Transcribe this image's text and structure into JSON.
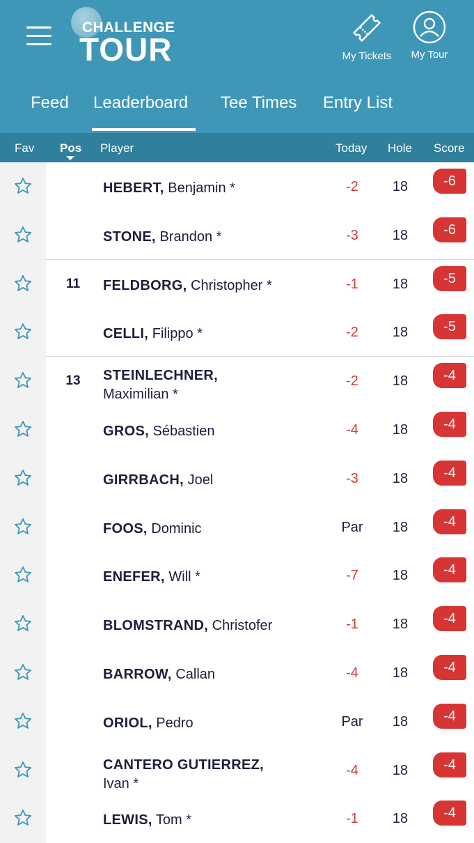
{
  "header": {
    "logo_line1": "CHALLENGE",
    "logo_line2": "TOUR",
    "tickets_label": "My Tickets",
    "mytour_label": "My Tour",
    "accent_color": "#3f97b8"
  },
  "tabs": [
    {
      "label": "Feed"
    },
    {
      "label": "Leaderboard",
      "active": true
    },
    {
      "label": "Tee Times"
    },
    {
      "label": "Entry List"
    }
  ],
  "columns": {
    "fav": "Fav",
    "pos": "Pos",
    "player": "Player",
    "today": "Today",
    "hole": "Hole",
    "score": "Score"
  },
  "rows": [
    {
      "pos": "",
      "last": "HEBERT,",
      "first": "Benjamin *",
      "today": "-2",
      "hole": "18",
      "score": "-6"
    },
    {
      "pos": "",
      "last": "STONE,",
      "first": "Brandon *",
      "today": "-3",
      "hole": "18",
      "score": "-6"
    },
    {
      "pos": "11",
      "last": "FELDBORG,",
      "first": "Christopher *",
      "today": "-1",
      "hole": "18",
      "score": "-5"
    },
    {
      "pos": "",
      "last": "CELLI,",
      "first": "Filippo *",
      "today": "-2",
      "hole": "18",
      "score": "-5"
    },
    {
      "pos": "13",
      "last": "STEINLECHNER,",
      "first": "Maximilian *",
      "today": "-2",
      "hole": "18",
      "score": "-4"
    },
    {
      "pos": "",
      "last": "GROS,",
      "first": "Sébastien",
      "today": "-4",
      "hole": "18",
      "score": "-4"
    },
    {
      "pos": "",
      "last": "GIRRBACH,",
      "first": "Joel",
      "today": "-3",
      "hole": "18",
      "score": "-4"
    },
    {
      "pos": "",
      "last": "FOOS,",
      "first": "Dominic",
      "today": "Par",
      "hole": "18",
      "score": "-4"
    },
    {
      "pos": "",
      "last": "ENEFER,",
      "first": "Will *",
      "today": "-7",
      "hole": "18",
      "score": "-4"
    },
    {
      "pos": "",
      "last": "BLOMSTRAND,",
      "first": "Christofer",
      "today": "-1",
      "hole": "18",
      "score": "-4"
    },
    {
      "pos": "",
      "last": "BARROW,",
      "first": "Callan",
      "today": "-4",
      "hole": "18",
      "score": "-4"
    },
    {
      "pos": "",
      "last": "ORIOL,",
      "first": "Pedro",
      "today": "Par",
      "hole": "18",
      "score": "-4"
    },
    {
      "pos": "",
      "last": "CANTERO GUTIERREZ,",
      "first": "Ivan *",
      "today": "-4",
      "hole": "18",
      "score": "-4"
    },
    {
      "pos": "",
      "last": "LEWIS,",
      "first": "Tom *",
      "today": "-1",
      "hole": "18",
      "score": "-4"
    }
  ]
}
